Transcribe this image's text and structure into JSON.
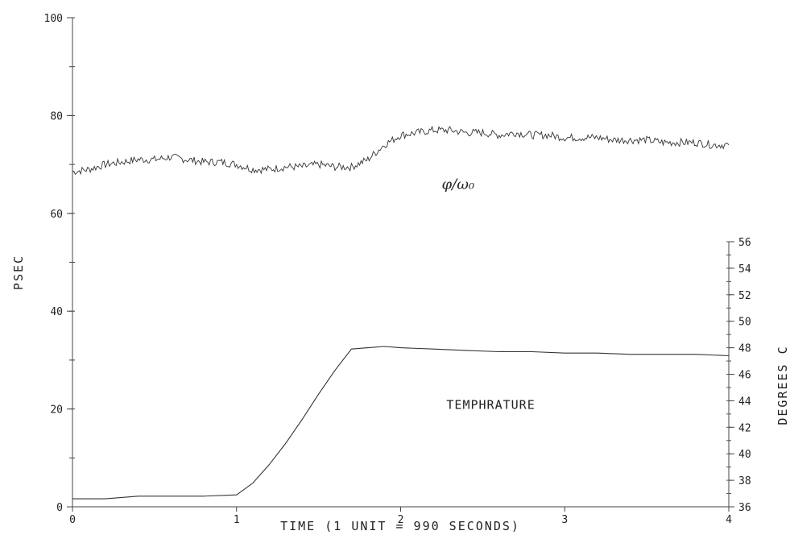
{
  "chart_data": {
    "type": "line",
    "xlabel": "TIME (1 UNIT = 990 SECONDS)",
    "ylabel": "PSEC",
    "y2label": "DEGREES C",
    "xlim": [
      0,
      4
    ],
    "ylim": [
      0,
      100
    ],
    "y2lim": [
      36,
      56
    ],
    "x_ticks": [
      0,
      1,
      2,
      3,
      4
    ],
    "x_tick_labels": [
      "0",
      "1",
      "2",
      "3",
      "4"
    ],
    "y_ticks": [
      0,
      20,
      40,
      60,
      80,
      100
    ],
    "y_tick_labels": [
      "0",
      "20",
      "40",
      "60",
      "80",
      "100"
    ],
    "y2_ticks": [
      36,
      38,
      40,
      42,
      44,
      46,
      48,
      50,
      52,
      54,
      56
    ],
    "y2_tick_labels": [
      "36",
      "38",
      "40",
      "42",
      "44",
      "46",
      "48",
      "50",
      "52",
      "54",
      "56"
    ],
    "grid": false,
    "legend": "none",
    "annotations": [
      {
        "text": "φ/ω₀",
        "x": 2.35,
        "y": 65,
        "axis": "left"
      },
      {
        "text": "TEMPHRATURE",
        "x": 2.55,
        "y": 20,
        "axis": "left"
      }
    ],
    "series": [
      {
        "axis": "left",
        "x": [
          0.0,
          0.1,
          0.2,
          0.3,
          0.4,
          0.5,
          0.6,
          0.7,
          0.8,
          0.9,
          1.0,
          1.1,
          1.2,
          1.3,
          1.4,
          1.5,
          1.6,
          1.7,
          1.8,
          1.9,
          2.0,
          2.1,
          2.2,
          2.3,
          2.4,
          2.5,
          2.6,
          2.7,
          2.8,
          2.9,
          3.0,
          3.1,
          3.2,
          3.3,
          3.4,
          3.5,
          3.6,
          3.7,
          3.8,
          3.9,
          4.0
        ],
        "values": [
          68.5,
          69,
          70,
          70.5,
          71,
          71,
          71.5,
          71,
          70.5,
          70.5,
          70,
          69,
          69,
          69.5,
          69.5,
          70,
          69.5,
          69.5,
          71,
          74,
          76,
          76.5,
          77,
          77,
          76.5,
          76.5,
          76,
          76.5,
          76,
          76,
          75.5,
          75.5,
          75.5,
          75,
          75,
          75,
          74.5,
          74.5,
          74.5,
          74,
          74
        ]
      },
      {
        "axis": "right",
        "x": [
          0.0,
          0.2,
          0.4,
          0.6,
          0.8,
          1.0,
          1.1,
          1.2,
          1.3,
          1.4,
          1.5,
          1.6,
          1.7,
          1.8,
          1.9,
          2.0,
          2.2,
          2.4,
          2.6,
          2.8,
          3.0,
          3.2,
          3.4,
          3.6,
          3.8,
          4.0
        ],
        "values": [
          36.6,
          36.6,
          36.8,
          36.8,
          36.8,
          36.9,
          37.8,
          39.2,
          40.8,
          42.6,
          44.5,
          46.3,
          47.9,
          48.0,
          48.1,
          48.0,
          47.9,
          47.8,
          47.7,
          47.7,
          47.6,
          47.6,
          47.5,
          47.5,
          47.5,
          47.4
        ]
      }
    ]
  }
}
